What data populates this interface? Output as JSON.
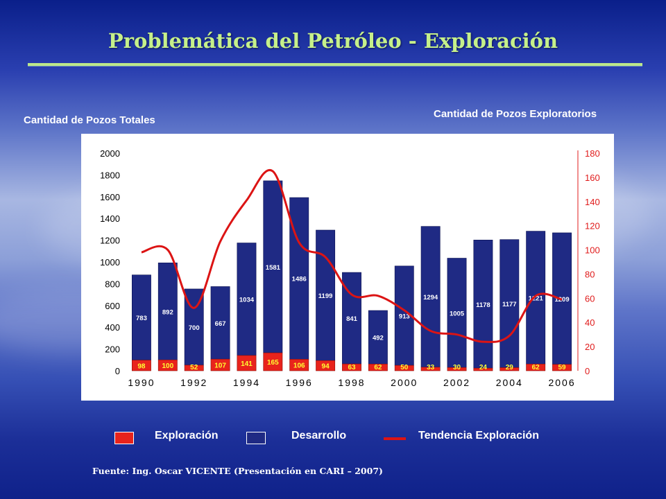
{
  "slide": {
    "title": "Problemática del Petróleo - Exploración",
    "left_axis_title": "Cantidad de Pozos Totales",
    "right_axis_title": "Cantidad de Pozos Exploratorios",
    "source": "Fuente:  Ing. Oscar VICENTE (Presentación en CARI – 2007)"
  },
  "legend": {
    "exploracion": "Exploración",
    "desarrollo": "Desarrollo",
    "tendencia": "Tendencia Exploración"
  },
  "colors": {
    "exploracion": "#e8231c",
    "desarrollo": "#1f2a84",
    "tendencia": "#dc1414",
    "right_axis": "#e01b1b",
    "title": "#c6f08a"
  },
  "chart_data": {
    "type": "bar",
    "stacked": true,
    "categories": [
      "1990",
      "1991",
      "1992",
      "1993",
      "1994",
      "1995",
      "1996",
      "1997",
      "1998",
      "1999",
      "2000",
      "2001",
      "2002",
      "2003",
      "2004",
      "2005",
      "2006"
    ],
    "x_tick_labels": [
      "1990",
      "1992",
      "1994",
      "1996",
      "1998",
      "2000",
      "2002",
      "2004",
      "2006"
    ],
    "series": [
      {
        "name": "Exploración",
        "axis": "left",
        "values": [
          98,
          100,
          52,
          107,
          141,
          165,
          106,
          94,
          63,
          62,
          50,
          33,
          30,
          24,
          29,
          62,
          59
        ]
      },
      {
        "name": "Desarrollo",
        "axis": "left",
        "values": [
          783,
          892,
          700,
          667,
          1034,
          1581,
          1486,
          1199,
          841,
          492,
          913,
          1294,
          1005,
          1178,
          1177,
          1221,
          1209
        ]
      },
      {
        "name": "Tendencia Exploración",
        "type": "line",
        "axis": "right",
        "values": [
          98,
          100,
          52,
          107,
          141,
          165,
          106,
          94,
          63,
          62,
          50,
          33,
          30,
          24,
          29,
          62,
          59
        ]
      }
    ],
    "ylim": [
      0,
      2000
    ],
    "yticks": [
      0,
      200,
      400,
      600,
      800,
      1000,
      1200,
      1400,
      1600,
      1800,
      2000
    ],
    "y2lim": [
      0,
      180
    ],
    "y2ticks": [
      0,
      20,
      40,
      60,
      80,
      100,
      120,
      140,
      160,
      180
    ],
    "grid": false
  }
}
